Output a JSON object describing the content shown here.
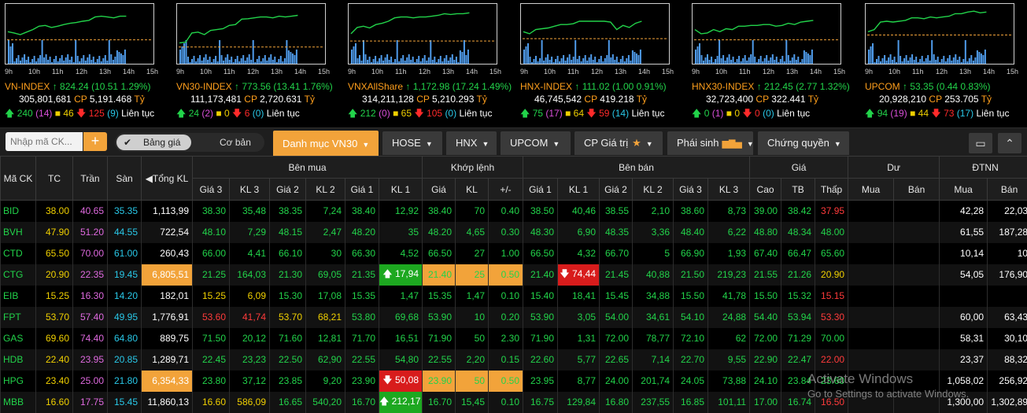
{
  "indices": [
    {
      "name": "VN-INDEX",
      "value": "824.24",
      "change": "(10.51 1.29%)",
      "volume": "305,801,681",
      "cp": "CP",
      "value_money": "5,191.468",
      "unit": "Tỷ",
      "up": "240",
      "ceil": "(14)",
      "ref": "46",
      "down": "125",
      "floor": "(9)",
      "status": "Liên tục",
      "times": [
        "9h",
        "10h",
        "11h",
        "12h",
        "13h",
        "14h",
        "15h"
      ],
      "line_color": "#22d34a",
      "ref_level": 0.6
    },
    {
      "name": "VN30-INDEX",
      "value": "773.56",
      "change": "(13.41 1.76%)",
      "volume": "111,173,481",
      "cp": "CP",
      "value_money": "2,720.631",
      "unit": "Tỷ",
      "up": "24",
      "ceil": "(2)",
      "ref": "0",
      "down": "6",
      "floor": "(0)",
      "status": "Liên tục",
      "times": [
        "9h",
        "10h",
        "11h",
        "12h",
        "13h",
        "14h",
        "15h"
      ],
      "line_color": "#22d34a",
      "ref_level": 0.72
    },
    {
      "name": "VNXAllShare",
      "value": "1,172.98",
      "change": "(17.24 1.49%)",
      "volume": "314,211,128",
      "cp": "CP",
      "value_money": "5,210.293",
      "unit": "Tỷ",
      "up": "212",
      "ceil": "(0)",
      "ref": "65",
      "down": "105",
      "floor": "(0)",
      "status": "Liên tục",
      "times": [
        "9h",
        "10h",
        "11h",
        "12h",
        "13h",
        "14h",
        "15h"
      ],
      "line_color": "#22d34a",
      "ref_level": 0.62
    },
    {
      "name": "HNX-INDEX",
      "value": "111.02",
      "change": "(1.00 0.91%)",
      "volume": "46,745,542",
      "cp": "CP",
      "value_money": "419.218",
      "unit": "Tỷ",
      "up": "75",
      "ceil": "(17)",
      "ref": "64",
      "down": "59",
      "floor": "(14)",
      "status": "Liên tục",
      "times": [
        "9h",
        "10h",
        "11h",
        "12h",
        "13h",
        "14h",
        "15h"
      ],
      "line_color": "#22d34a",
      "ref_level": 0.58
    },
    {
      "name": "HNX30-INDEX",
      "value": "212.45",
      "change": "(2.77 1.32%)",
      "volume": "32,723,400",
      "cp": "CP",
      "value_money": "322.441",
      "unit": "Tỷ",
      "up": "0",
      "ceil": "(1)",
      "ref": "0",
      "down": "0",
      "floor": "(0)",
      "status": "Liên tục",
      "times": [
        "9h",
        "10h",
        "11h",
        "12h",
        "13h",
        "14h",
        "15h"
      ],
      "line_color": "#22d34a",
      "ref_level": 0.6
    },
    {
      "name": "UPCOM",
      "value": "53.35",
      "change": "(0.44 0.83%)",
      "volume": "20,928,210",
      "cp": "CP",
      "value_money": "253.705",
      "unit": "Tỷ",
      "up": "94",
      "ceil": "(19)",
      "ref": "44",
      "down": "73",
      "floor": "(17)",
      "status": "Liên tục",
      "times": [
        "9h",
        "10h",
        "11h",
        "12h",
        "13h",
        "14h",
        "15h"
      ],
      "line_color": "#22d34a",
      "ref_level": 0.52
    }
  ],
  "toolbar": {
    "search_placeholder": "Nhập mã CK...",
    "add_label": "+",
    "toggle_on": "Bảng giá",
    "toggle_off": "Cơ bản",
    "tabs": [
      "Danh mục VN30",
      "HOSE",
      "HNX",
      "UPCOM",
      "CP Giá trị",
      "Phái sinh",
      "Chứng quyền"
    ],
    "active_tab": "Danh mục VN30"
  },
  "headers": {
    "symbol": "Mã CK",
    "ref": "TC",
    "ceil": "Trần",
    "floor": "Sàn",
    "total": "◀Tổng KL",
    "bid_group": "Bên mua",
    "match_group": "Khớp lệnh",
    "ask_group": "Bên bán",
    "price_group": "Giá",
    "remain_group": "Dư",
    "foreign_group": "ĐTNN",
    "bid": [
      "Giá 3",
      "KL 3",
      "Giá 2",
      "KL 2",
      "Giá 1",
      "KL 1"
    ],
    "match": [
      "Giá",
      "KL",
      "+/-"
    ],
    "ask": [
      "Giá 1",
      "KL 1",
      "Giá 2",
      "KL 2",
      "Giá 3",
      "KL 3"
    ],
    "price": [
      "Cao",
      "TB",
      "Thấp"
    ],
    "remain": [
      "Mua",
      "Bán"
    ],
    "foreign": [
      "Mua",
      "Bán"
    ]
  },
  "rows": [
    [
      "BID",
      "38.00",
      "40.65",
      "35.35",
      "1,113,99",
      "38.30",
      "35,48",
      "38.35",
      "7,24",
      "38.40",
      "12,92",
      "38.40",
      "70",
      "0.40",
      "38.50",
      "40,46",
      "38.55",
      "2,10",
      "38.60",
      "8,73",
      "39.00",
      "38.42",
      "37.95",
      "",
      "",
      "42,28",
      "22,03"
    ],
    [
      "BVH",
      "47.90",
      "51.20",
      "44.55",
      "722,54",
      "48.10",
      "7,29",
      "48.15",
      "2,47",
      "48.20",
      "35",
      "48.20",
      "4,65",
      "0.30",
      "48.30",
      "6,90",
      "48.35",
      "3,36",
      "48.40",
      "6,22",
      "48.80",
      "48.34",
      "48.00",
      "",
      "",
      "61,55",
      "187,28"
    ],
    [
      "CTD",
      "65.50",
      "70.00",
      "61.00",
      "260,43",
      "66.00",
      "4,41",
      "66.10",
      "30",
      "66.30",
      "4,52",
      "66.50",
      "27",
      "1.00",
      "66.50",
      "4,32",
      "66.70",
      "5",
      "66.90",
      "1,93",
      "67.40",
      "66.47",
      "65.60",
      "",
      "",
      "10,14",
      "10"
    ],
    [
      "CTG",
      "20.90",
      "22.35",
      "19.45",
      "6,805,51",
      "21.25",
      "164,03",
      "21.30",
      "69,05",
      "21.35",
      "17,94",
      "21.40",
      "25",
      "0.50",
      "21.40",
      "74,44",
      "21.45",
      "40,88",
      "21.50",
      "219,23",
      "21.55",
      "21.26",
      "20.90",
      "",
      "",
      "54,05",
      "176,90"
    ],
    [
      "EIB",
      "15.25",
      "16.30",
      "14.20",
      "182,01",
      "15.25",
      "6,09",
      "15.30",
      "17,08",
      "15.35",
      "1,47",
      "15.35",
      "1,47",
      "0.10",
      "15.40",
      "18,41",
      "15.45",
      "34,88",
      "15.50",
      "41,78",
      "15.50",
      "15.32",
      "15.15",
      "",
      "",
      "",
      ""
    ],
    [
      "FPT",
      "53.70",
      "57.40",
      "49.95",
      "1,776,91",
      "53.60",
      "41,74",
      "53.70",
      "68,21",
      "53.80",
      "69,68",
      "53.90",
      "10",
      "0.20",
      "53.90",
      "3,05",
      "54.00",
      "34,61",
      "54.10",
      "24,88",
      "54.40",
      "53.94",
      "53.30",
      "",
      "",
      "60,00",
      "63,43"
    ],
    [
      "GAS",
      "69.60",
      "74.40",
      "64.80",
      "889,75",
      "71.50",
      "20,12",
      "71.60",
      "12,81",
      "71.70",
      "16,51",
      "71.90",
      "50",
      "2.30",
      "71.90",
      "1,31",
      "72.00",
      "78,77",
      "72.10",
      "62",
      "72.00",
      "71.29",
      "70.00",
      "",
      "",
      "58,31",
      "30,10"
    ],
    [
      "HDB",
      "22.40",
      "23.95",
      "20.85",
      "1,289,71",
      "22.45",
      "23,23",
      "22.50",
      "62,90",
      "22.55",
      "54,80",
      "22.55",
      "2,20",
      "0.15",
      "22.60",
      "5,77",
      "22.65",
      "7,14",
      "22.70",
      "9,55",
      "22.90",
      "22.47",
      "22.00",
      "",
      "",
      "23,37",
      "88,32"
    ],
    [
      "HPG",
      "23.40",
      "25.00",
      "21.80",
      "6,354,33",
      "23.80",
      "37,12",
      "23.85",
      "9,20",
      "23.90",
      "50,08",
      "23.90",
      "50",
      "0.50",
      "23.95",
      "8,77",
      "24.00",
      "201,74",
      "24.05",
      "73,88",
      "24.10",
      "23.84",
      "23.60",
      "",
      "",
      "1,058,02",
      "256,92"
    ],
    [
      "MBB",
      "16.60",
      "17.75",
      "15.45",
      "11,860,13",
      "16.60",
      "586,09",
      "16.65",
      "540,20",
      "16.70",
      "212,17",
      "16.70",
      "15,45",
      "0.10",
      "16.75",
      "129,84",
      "16.80",
      "237,55",
      "16.85",
      "101,11",
      "17.00",
      "16.74",
      "16.50",
      "",
      "",
      "1,300,00",
      "1,302,89"
    ]
  ],
  "watermark": {
    "title": "Activate Windows",
    "subtitle": "Go to Settings to activate Windows."
  }
}
